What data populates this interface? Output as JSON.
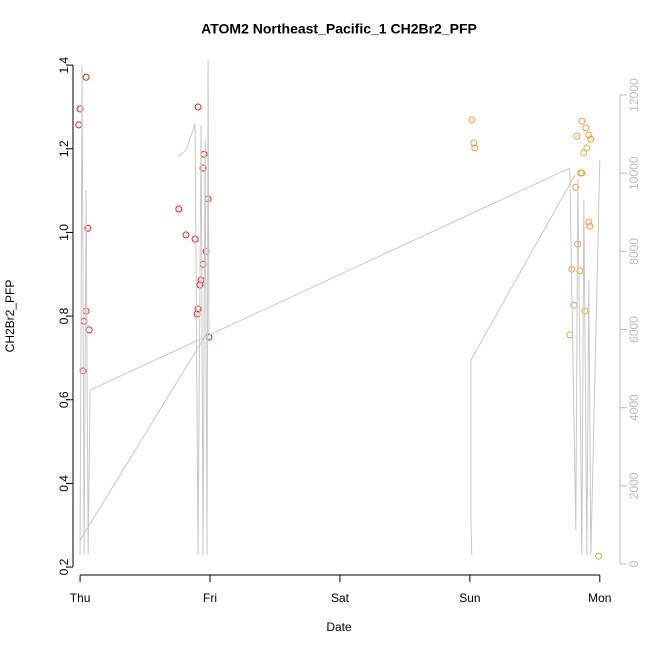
{
  "chart_data": {
    "type": "scatter",
    "title": "ATOM2 Northeast_Pacific_1 CH2Br2_PFP",
    "xlabel": "Date",
    "ylabel": "CH2Br2_PFP",
    "xlim": [
      -0.17,
      4.14
    ],
    "xticks": [
      {
        "value": 0,
        "label": "Thu"
      },
      {
        "value": 1,
        "label": "Fri"
      },
      {
        "value": 2,
        "label": "Sat"
      },
      {
        "value": 3,
        "label": "Sun"
      },
      {
        "value": 4,
        "label": "Mon"
      }
    ],
    "ylim": [
      0.181,
      1.417
    ],
    "yticks": [
      0.2,
      0.4,
      0.6,
      0.8,
      {
        "value": 1,
        "label": "1.0"
      },
      1.2,
      1.4
    ],
    "y2lim": [
      -281,
      12947
    ],
    "y2ticks": [
      0,
      2000,
      4000,
      6000,
      8000,
      10000,
      12000
    ],
    "series": [
      {
        "type": "scatter",
        "color": "#ee1c1c",
        "x": [
          0.0,
          -0.01,
          0.046,
          0.06,
          0.046,
          0.03,
          0.07,
          0.023,
          0.76,
          0.815,
          0.885,
          0.908,
          0.954,
          0.946,
          0.985,
          0.97,
          0.946,
          0.931,
          0.923,
          0.908,
          0.9,
          0.992
        ],
        "values": [
          1.295,
          1.257,
          1.371,
          1.01,
          0.812,
          0.788,
          0.767,
          0.669,
          1.056,
          0.994,
          0.984,
          1.3,
          1.187,
          1.154,
          1.08,
          0.955,
          0.924,
          0.886,
          0.874,
          0.817,
          0.805,
          0.75
        ]
      },
      {
        "type": "scatter",
        "color": "#f5a030",
        "x": [
          3.015,
          3.03,
          3.038,
          3.77,
          3.785,
          3.8,
          3.823,
          3.815,
          3.83,
          3.846,
          3.854,
          3.862,
          3.862,
          3.877,
          3.885,
          3.892,
          3.9,
          3.915,
          3.915,
          3.923,
          3.93,
          3.99
        ],
        "values": [
          1.269,
          1.214,
          1.202,
          0.755,
          0.912,
          0.826,
          1.23,
          1.108,
          0.972,
          0.908,
          1.142,
          1.142,
          1.266,
          1.19,
          0.812,
          1.25,
          1.202,
          1.233,
          1.025,
          1.015,
          1.223,
          0.226
        ]
      },
      {
        "type": "line",
        "axis": "y2",
        "color": "#c8c8c8",
        "x": [
          0,
          0.015,
          0.031,
          0.046,
          0.062,
          0.077,
          3.769,
          3.815,
          3.831,
          3.862,
          3.877,
          3.9,
          3.915,
          3.931,
          4.0,
          null,
          0.754,
          0.815,
          0.885,
          0.908,
          0.931,
          0.946,
          0.962,
          0.977,
          0.985,
          0.992,
          0,
          null,
          3.015,
          3.008,
          3.008,
          3.808
        ],
        "values": [
          230,
          12770,
          230,
          9570,
          230,
          4450,
          10130,
          870,
          9830,
          230,
          9310,
          230,
          7270,
          230,
          10340,
          null,
          10420,
          10590,
          11260,
          230,
          11230,
          230,
          10850,
          230,
          12900,
          5990,
          610,
          null,
          230,
          1130,
          5220,
          9950
        ]
      }
    ]
  }
}
